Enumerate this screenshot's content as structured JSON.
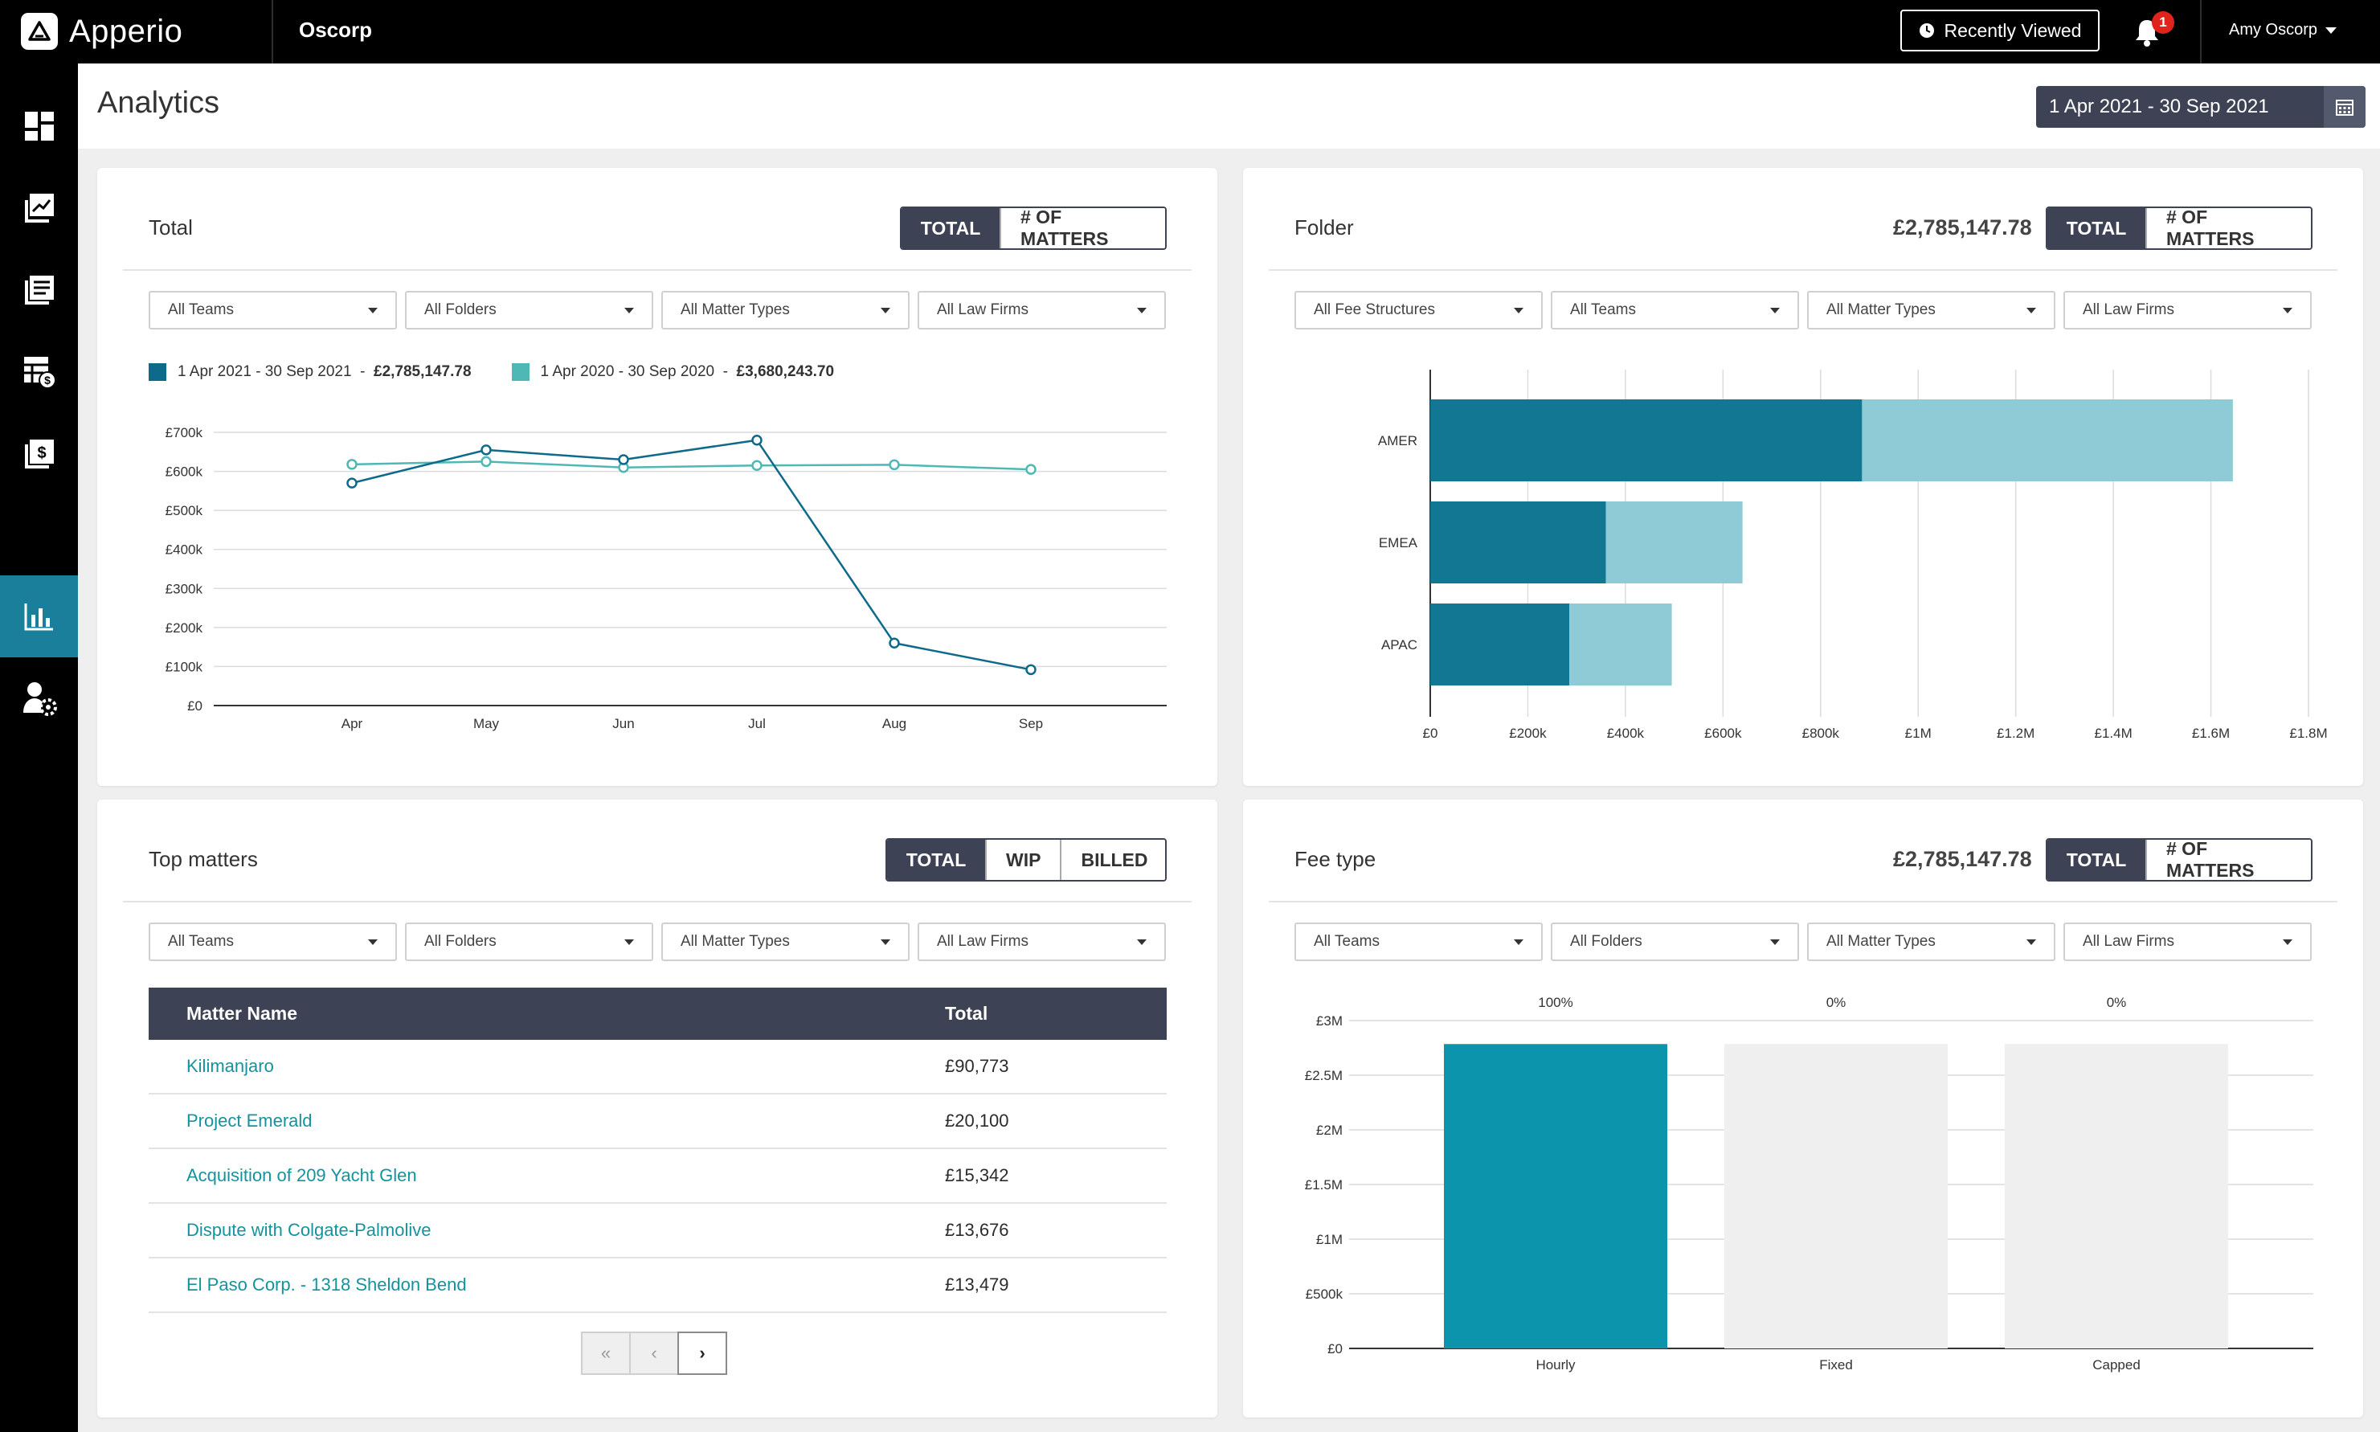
{
  "app": {
    "name": "Apperio",
    "org": "Oscorp",
    "recently_viewed": "Recently Viewed",
    "notifications": "1",
    "user": "Amy Oscorp"
  },
  "sidebar": {
    "items": [
      {
        "icon": "dashboard-icon",
        "active": false
      },
      {
        "icon": "trends-icon",
        "active": false
      },
      {
        "icon": "documents-icon",
        "active": false
      },
      {
        "icon": "budget-icon",
        "active": false
      },
      {
        "icon": "invoices-icon",
        "active": false
      },
      {
        "icon": "analytics-icon",
        "active": true
      },
      {
        "icon": "user-settings-icon",
        "active": false
      }
    ]
  },
  "page": {
    "title": "Analytics",
    "date_range": "1 Apr 2021 - 30 Sep 2021"
  },
  "total_card": {
    "title": "Total",
    "toggle": [
      "TOTAL",
      "# OF MATTERS"
    ],
    "filters": [
      "All Teams",
      "All Folders",
      "All Matter Types",
      "All Law Firms"
    ],
    "legend": [
      {
        "label": "1 Apr 2021 - 30 Sep 2021",
        "amount": "£2,785,147.78",
        "color": "#0e6a8a"
      },
      {
        "label": "1 Apr 2020 - 30 Sep 2020",
        "amount": "£3,680,243.70",
        "color": "#4fb8b5"
      }
    ]
  },
  "folder_card": {
    "title": "Folder",
    "total": "£2,785,147.78",
    "toggle": [
      "TOTAL",
      "# OF MATTERS"
    ],
    "filters": [
      "All Fee Structures",
      "All Teams",
      "All Matter Types",
      "All Law Firms"
    ]
  },
  "top_matters_card": {
    "title": "Top matters",
    "toggle": [
      "TOTAL",
      "WIP",
      "BILLED"
    ],
    "filters": [
      "All Teams",
      "All Folders",
      "All Matter Types",
      "All Law Firms"
    ],
    "columns": [
      "Matter Name",
      "Total"
    ],
    "rows": [
      {
        "name": "Kilimanjaro",
        "total": "£90,773"
      },
      {
        "name": "Project Emerald",
        "total": "£20,100"
      },
      {
        "name": "Acquisition of 209 Yacht Glen",
        "total": "£15,342"
      },
      {
        "name": "Dispute with Colgate-Palmolive",
        "total": "£13,676"
      },
      {
        "name": "El Paso Corp. - 1318 Sheldon Bend",
        "total": "£13,479"
      }
    ],
    "pager": [
      "«",
      "‹",
      "›"
    ]
  },
  "fee_type_card": {
    "title": "Fee type",
    "total": "£2,785,147.78",
    "toggle": [
      "TOTAL",
      "# OF MATTERS"
    ],
    "filters": [
      "All Teams",
      "All Folders",
      "All Matter Types",
      "All Law Firms"
    ]
  },
  "chart_data": [
    {
      "type": "line",
      "categories": [
        "Apr",
        "May",
        "Jun",
        "Jul",
        "Aug",
        "Sep"
      ],
      "series": [
        {
          "name": "1 Apr 2021 - 30 Sep 2021",
          "values": [
            570000,
            655000,
            630000,
            680000,
            160000,
            92000
          ],
          "color": "#0e6a8a"
        },
        {
          "name": "1 Apr 2020 - 30 Sep 2020",
          "values": [
            618000,
            625000,
            610000,
            615000,
            617000,
            605000
          ],
          "color": "#4fb8b5"
        }
      ],
      "yticks": [
        "£0",
        "£100k",
        "£200k",
        "£300k",
        "£400k",
        "£500k",
        "£600k",
        "£700k"
      ],
      "ylim": [
        0,
        700000
      ],
      "grid": true
    },
    {
      "type": "bar",
      "orientation": "horizontal",
      "stacked": true,
      "categories": [
        "AMER",
        "EMEA",
        "APAC"
      ],
      "series": [
        {
          "values": [
            885000,
            360000,
            285000
          ],
          "color": "#127793"
        },
        {
          "values": [
            760000,
            280000,
            210000
          ],
          "color": "#8ecbd6"
        }
      ],
      "xticks": [
        "£0",
        "£200k",
        "£400k",
        "£600k",
        "£800k",
        "£1M",
        "£1.2M",
        "£1.4M",
        "£1.6M",
        "£1.8M"
      ],
      "xlim": [
        0,
        1800000
      ],
      "grid": true
    },
    {
      "type": "bar",
      "categories": [
        "Hourly",
        "Fixed",
        "Capped"
      ],
      "values": [
        2785147.78,
        0,
        0
      ],
      "data_labels": [
        "100%",
        "0%",
        "0%"
      ],
      "colors": [
        "#0c94ad",
        "#efefef",
        "#efefef"
      ],
      "yticks": [
        "£0",
        "£500k",
        "£1M",
        "£1.5M",
        "£2M",
        "£2.5M",
        "£3M"
      ],
      "ylim": [
        0,
        3000000
      ],
      "grid": true
    }
  ]
}
